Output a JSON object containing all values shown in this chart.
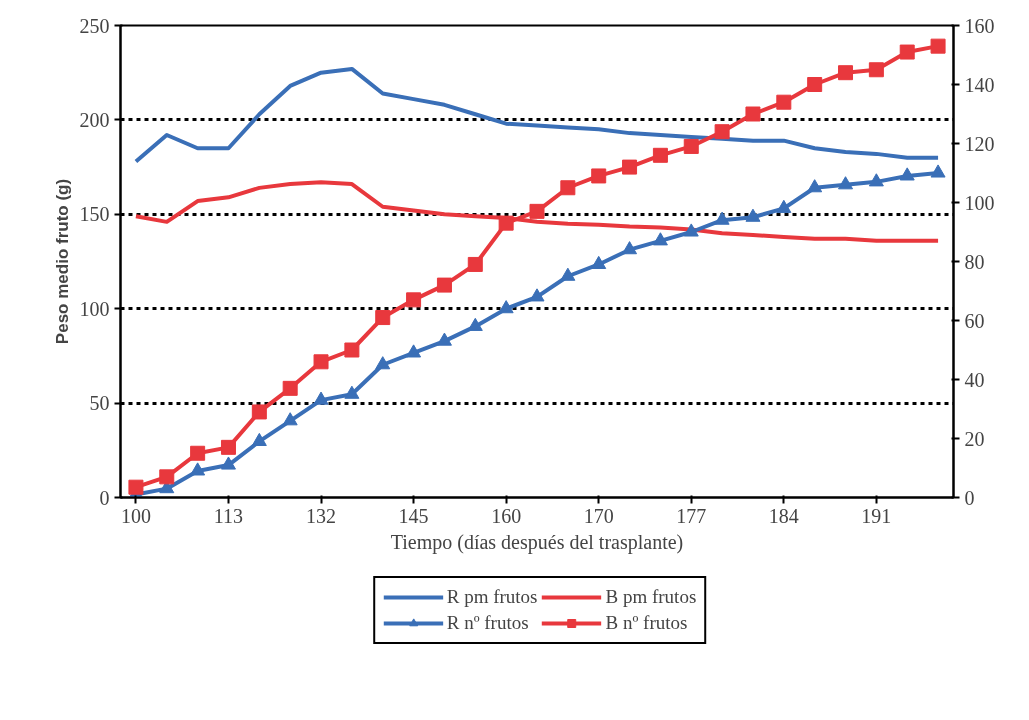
{
  "chart_data": {
    "type": "line",
    "xlabel": "Tiempo (días después del trasplante)",
    "ylabel": "Peso medio fruto (g)",
    "categories": [
      "100",
      null,
      null,
      "113",
      null,
      null,
      "132",
      null,
      null,
      "145",
      null,
      null,
      "160",
      null,
      null,
      "170",
      null,
      null,
      "177",
      null,
      null,
      "184",
      null,
      null,
      "191",
      null,
      null
    ],
    "ylim": [
      0,
      250
    ],
    "yticks": [
      0,
      50,
      100,
      150,
      200,
      250
    ],
    "y2lim": [
      0,
      160
    ],
    "y2ticks": [
      0,
      20,
      40,
      60,
      80,
      100,
      120,
      140,
      160
    ],
    "grid": "y",
    "legend": "bottom",
    "series": [
      {
        "name": "R pm frutos",
        "color": "#3a6fb7",
        "marker": "none",
        "values": [
          178,
          192,
          185,
          185,
          203,
          218,
          225,
          227,
          214,
          211,
          208,
          203,
          198,
          197,
          196,
          195,
          193,
          192,
          191,
          190,
          189,
          189,
          185,
          183,
          182,
          180,
          180
        ]
      },
      {
        "name": "B pm frutos",
        "color": "#e8383d",
        "marker": "none",
        "values": [
          149,
          146,
          157,
          159,
          164,
          166,
          167,
          166,
          154,
          152,
          150,
          149,
          148,
          146,
          145,
          144.5,
          143.5,
          143,
          142,
          140,
          139,
          138,
          137,
          137,
          136,
          136,
          136
        ]
      },
      {
        "name": "R nº frutos",
        "color": "#3a6fb7",
        "marker": "triangle",
        "axis": "y2",
        "values": [
          1,
          3,
          9,
          11,
          19,
          26,
          33,
          35,
          45,
          49,
          53,
          58,
          64,
          68,
          75,
          79,
          84,
          87,
          90,
          94,
          95,
          98,
          105,
          106,
          107,
          109,
          110
        ]
      },
      {
        "name": "B nº frutos",
        "color": "#e8383d",
        "marker": "square",
        "axis": "y2",
        "values": [
          3.5,
          7,
          15,
          17,
          29,
          37,
          46,
          50,
          61,
          67,
          72,
          79,
          93,
          97,
          105,
          109,
          112,
          116,
          119,
          124,
          130,
          134,
          140,
          144,
          145,
          151,
          153
        ]
      }
    ]
  }
}
